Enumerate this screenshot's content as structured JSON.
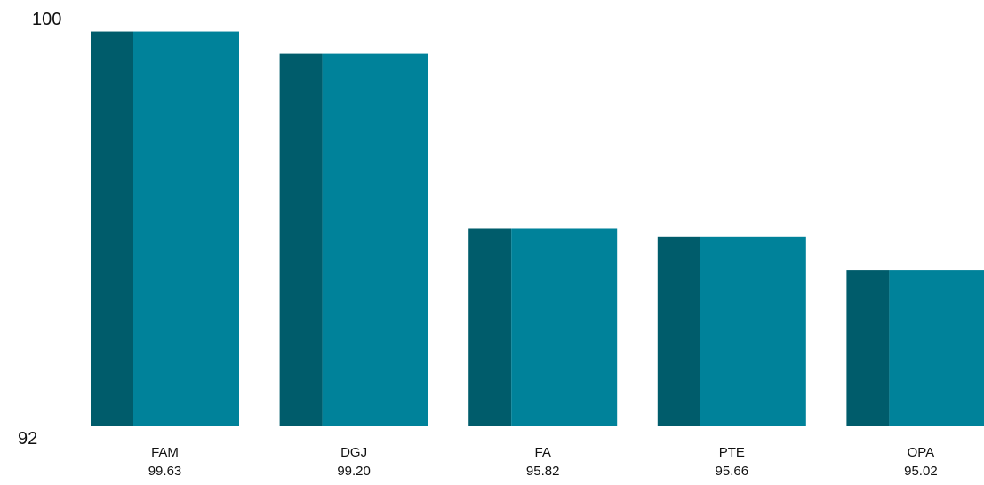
{
  "chart_data": {
    "type": "bar",
    "categories": [
      "FAM",
      "DGJ",
      "FA",
      "PTE",
      "OPA"
    ],
    "values": [
      99.63,
      99.2,
      95.82,
      95.66,
      95.02
    ],
    "value_labels": [
      "99.63",
      "99.20",
      "95.82",
      "95.66",
      "95.02"
    ],
    "ylim": [
      92,
      100
    ],
    "y_tick_labels": [
      "100",
      "92"
    ],
    "grid": false,
    "legend": "none",
    "colors": {
      "bar_front": "#00829a",
      "bar_side": "#005c6b"
    }
  }
}
